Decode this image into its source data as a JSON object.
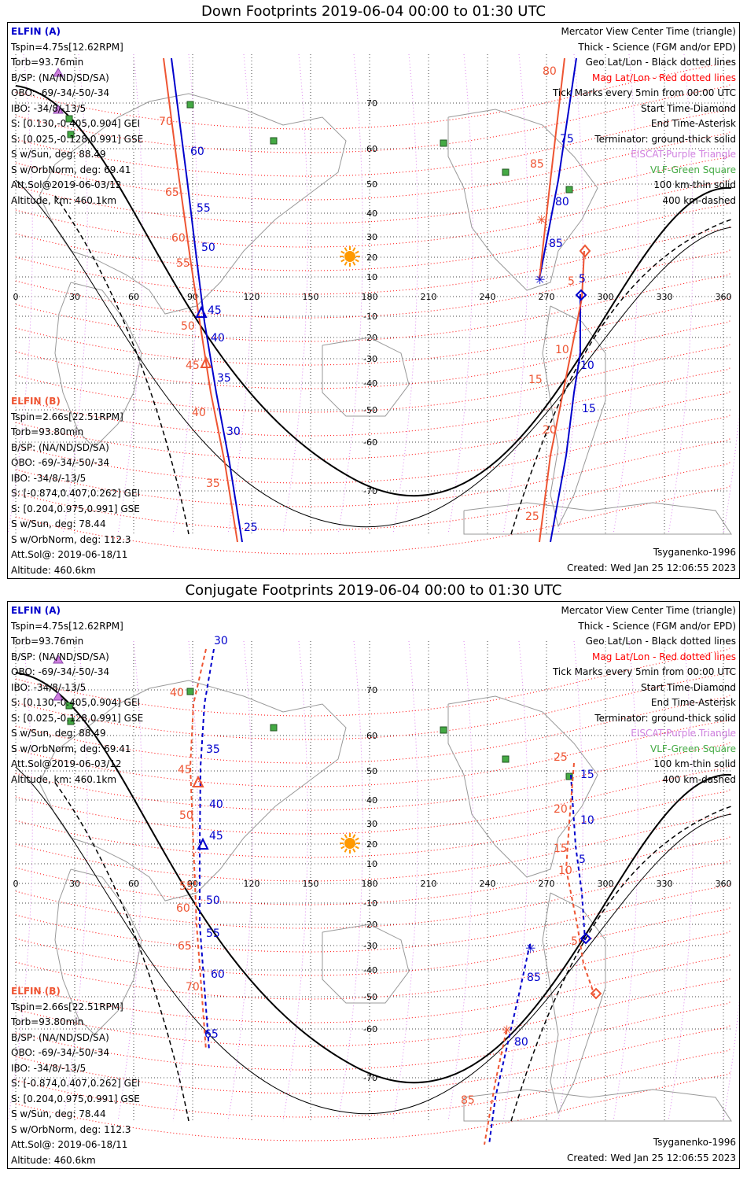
{
  "panels": [
    {
      "title": "Down Footprints 2019-06-04 00:00 to 01:30 UTC",
      "elfin_a": {
        "name": "ELFIN (A)",
        "lines": [
          "Tspin=4.75s[12.62RPM]",
          "Torb=93.76min",
          "B/SP: (NA/ND/SD/SA)",
          "OBO: -69/-34/-50/-34",
          "IBO: -34/8/-13/5",
          "S: [0.130,-0.405,0.904] GEI",
          "S: [0.025,-0.128,0.991] GSE",
          "S w/Sun, deg: 88.49",
          "S w/OrbNorm, deg: 69.41",
          "Att.Sol@2019-06-03/12",
          "Altitude, km: 460.1km"
        ]
      },
      "elfin_b": {
        "name": "ELFIN (B)",
        "lines": [
          "Tspin=2.66s[22.51RPM]",
          "Torb=93.80min",
          "B/SP: (NA/ND/SD/SA)",
          "OBO: -69/-34/-50/-34",
          "IBO: -34/8/-13/5",
          "S: [-0.874,0.407,0.262] GEI",
          "S: [0.204,0.975,0.991] GSE",
          "S w/Sun, deg: 78.44",
          "S w/OrbNorm, deg: 112.3",
          "Att.Sol@: 2019-06-18/11",
          "Altitude: 460.6km"
        ]
      },
      "model": "Tsyganenko-1996",
      "created": "Created: Wed Jan 25 12:06:55 2023",
      "track_a_labels": [
        "60",
        "55",
        "50",
        "45",
        "40",
        "35",
        "30",
        "25",
        "75",
        "80",
        "85",
        "5",
        "10",
        "15"
      ],
      "track_b_labels": [
        "70",
        "65",
        "60",
        "55",
        "50",
        "45",
        "40",
        "35",
        "80",
        "85",
        "5",
        "10",
        "15",
        "20",
        "25"
      ]
    },
    {
      "title": "Conjugate Footprints 2019-06-04 00:00 to 01:30 UTC",
      "elfin_a": {
        "name": "ELFIN (A)",
        "lines": [
          "Tspin=4.75s[12.62RPM]",
          "Torb=93.76min",
          "B/SP: (NA/ND/SD/SA)",
          "OBO: -69/-34/-50/-34",
          "IBO: -34/8/-13/5",
          "S: [0.130,-0.405,0.904] GEI",
          "S: [0.025,-0.128,0.991] GSE",
          "S w/Sun, deg: 88.49",
          "S w/OrbNorm, deg: 69.41",
          "Att.Sol@2019-06-03/12",
          "Altitude, km: 460.1km"
        ]
      },
      "elfin_b": {
        "name": "ELFIN (B)",
        "lines": [
          "Tspin=2.66s[22.51RPM]",
          "Torb=93.80min",
          "B/SP: (NA/ND/SD/SA)",
          "OBO: -69/-34/-50/-34",
          "IBO: -34/8/-13/5",
          "S: [-0.874,0.407,0.262] GEI",
          "S: [0.204,0.975,0.991] GSE",
          "S w/Sun, deg: 78.44",
          "S w/OrbNorm, deg: 112.3",
          "Att.Sol@: 2019-06-18/11",
          "Altitude: 460.6km"
        ]
      },
      "model": "Tsyganenko-1996",
      "created": "Created: Wed Jan 25 12:06:55 2023",
      "track_a_labels": [
        "30",
        "35",
        "40",
        "45",
        "50",
        "55",
        "60",
        "65",
        "80",
        "85",
        "15",
        "10",
        "5"
      ],
      "track_b_labels": [
        "40",
        "45",
        "50",
        "55",
        "60",
        "65",
        "70",
        "85",
        "25",
        "20",
        "15",
        "10",
        "5"
      ]
    }
  ],
  "legend": [
    {
      "text": "Mercator View Center Time (triangle)",
      "color": "#000000"
    },
    {
      "text": "Thick - Science (FGM and/or EPD)",
      "color": "#000000"
    },
    {
      "text": "Geo Lat/Lon - Black dotted lines",
      "color": "#000000"
    },
    {
      "text": "Mag Lat/Lon - Red dotted lines",
      "color": "#ff0000"
    },
    {
      "text": "Tick Marks every 5min from 00:00 UTC",
      "color": "#000000"
    },
    {
      "text": "Start Time-Diamond",
      "color": "#000000"
    },
    {
      "text": "End Time-Asterisk",
      "color": "#000000"
    },
    {
      "text": "Terminator: ground-thick solid",
      "color": "#000000"
    },
    {
      "text": "EISCAT-Purple Triangle",
      "color": "#d080e0"
    },
    {
      "text": "VLF-Green Square",
      "color": "#44aa44"
    },
    {
      "text": "100 km-thin solid",
      "color": "#000000"
    },
    {
      "text": "400 km-dashed",
      "color": "#000000"
    }
  ],
  "lon_ticks": [
    "0",
    "30",
    "60",
    "90",
    "120",
    "150",
    "180",
    "210",
    "240",
    "270",
    "300",
    "330",
    "360"
  ],
  "lat_ticks": [
    "70",
    "60",
    "50",
    "40",
    "30",
    "20",
    "10",
    "0",
    "-10",
    "-20",
    "-30",
    "-40",
    "-50",
    "-60",
    "-70"
  ],
  "colors": {
    "elfin_a": "#0000cc",
    "elfin_b": "#ee5533",
    "mag_grid": "#ff0000",
    "geo_grid": "#000000",
    "eiscat": "#d080e0",
    "vlf": "#44aa44",
    "sun": "#ff9900"
  },
  "icons": {
    "sun": "sun-icon",
    "eiscat": "triangle-icon",
    "vlf": "square-icon"
  }
}
